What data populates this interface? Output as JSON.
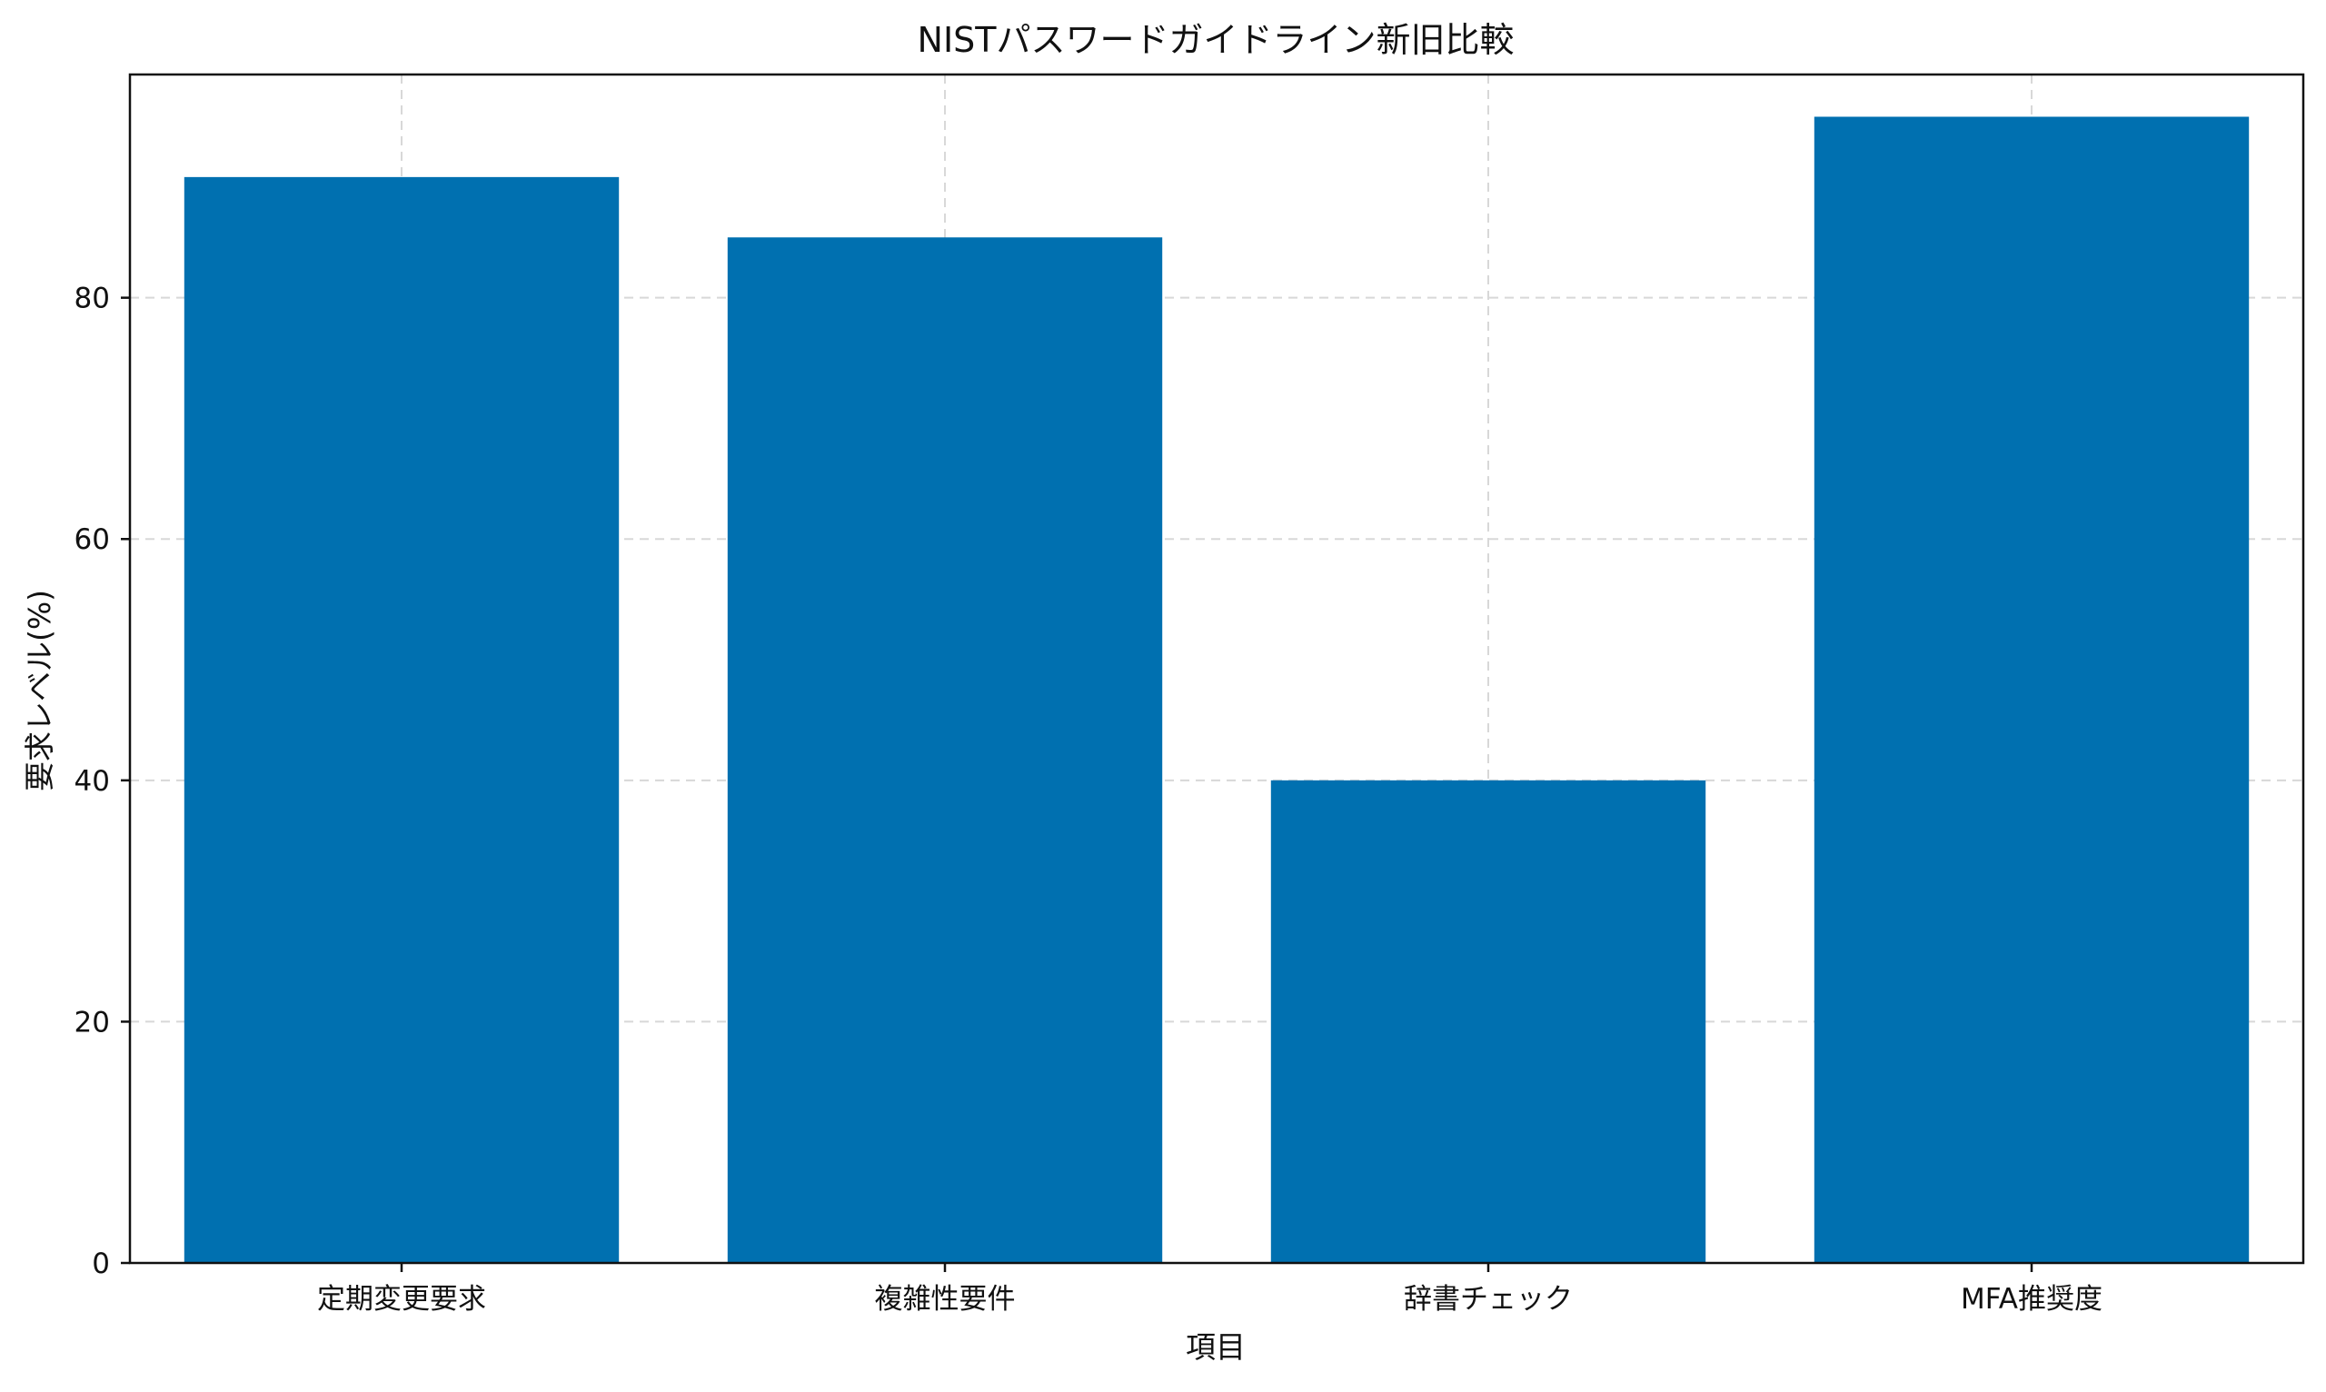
{
  "chart_data": {
    "type": "bar",
    "title": "NISTパスワードガイドライン新旧比較",
    "xlabel": "項目",
    "ylabel": "要求レベル(%)",
    "categories": [
      "定期変更要求",
      "複雑性要件",
      "辞書チェック",
      "MFA推奨度"
    ],
    "values": [
      90,
      85,
      40,
      95
    ],
    "ylim": [
      0,
      100
    ],
    "yticks": [
      0,
      20,
      40,
      60,
      80
    ],
    "grid": true,
    "bar_color": "#0070b0"
  }
}
